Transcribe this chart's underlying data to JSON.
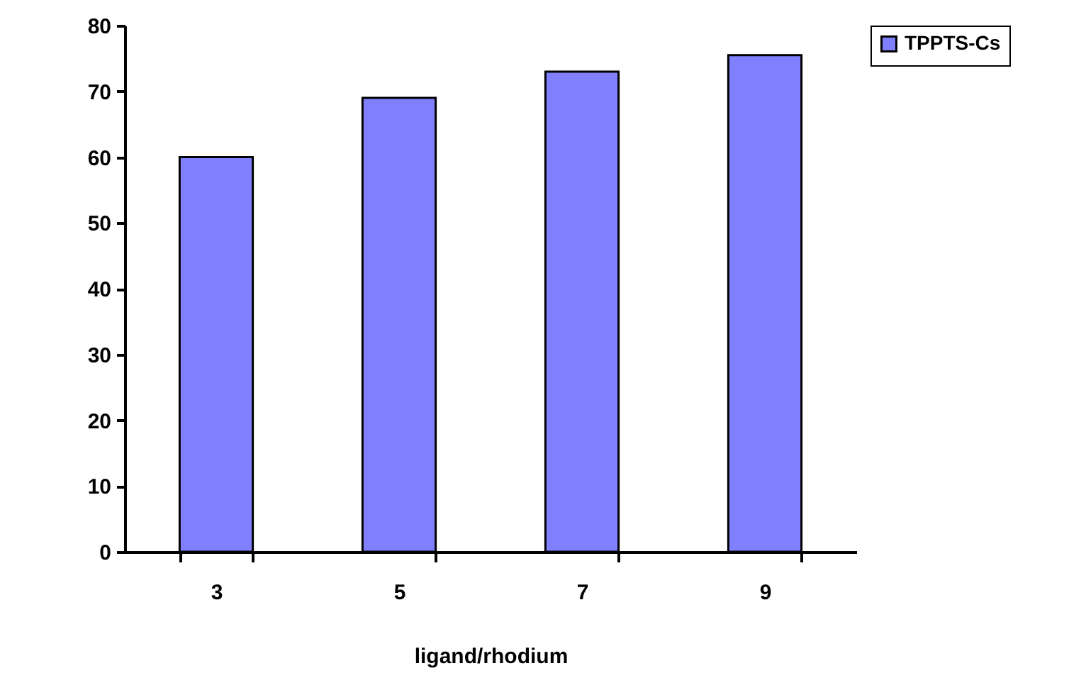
{
  "chart_data": {
    "type": "bar",
    "xlabel": "ligand/rhodium",
    "categories": [
      "3",
      "5",
      "7",
      "9"
    ],
    "series": [
      {
        "name": "TPPTS-Cs",
        "color": "#8080ff",
        "values": [
          60,
          69,
          73,
          75.5
        ]
      }
    ],
    "ylim": [
      0,
      80
    ],
    "yticks": [
      0,
      10,
      20,
      30,
      40,
      50,
      60,
      70,
      80
    ],
    "grid": false,
    "legend": "right"
  }
}
